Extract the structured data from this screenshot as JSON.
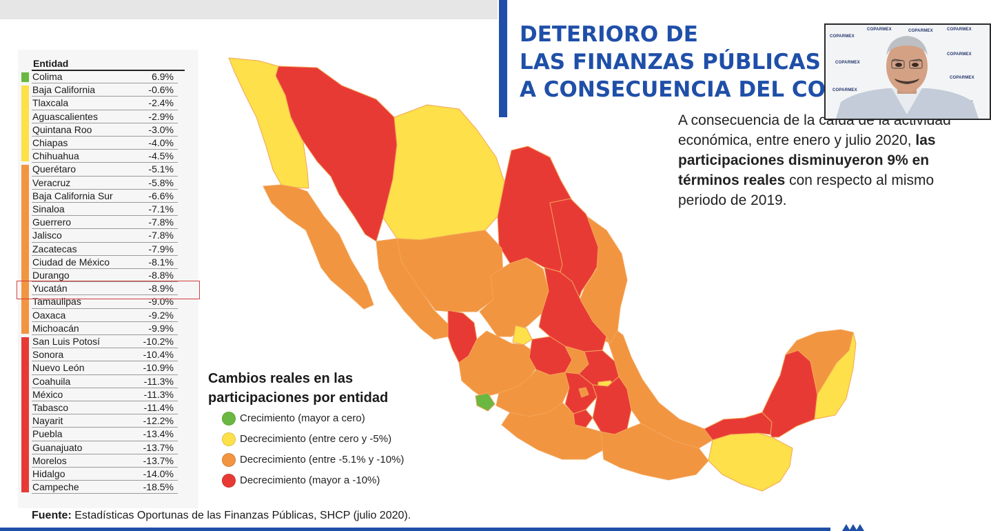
{
  "title": {
    "lines": [
      "DETERIORO DE",
      "LAS FINANZAS PÚBLICAS",
      "A CONSECUENCIA DEL COVID"
    ]
  },
  "paragraph": {
    "part1": "A consecuencia de la caída de la actividad económica, entre enero y julio 2020, ",
    "bold": "las participaciones disminuyeron 9% en términos reales",
    "part2": " con respecto al mismo periodo de 2019."
  },
  "webcam": {
    "logo_text": "COPARMEX"
  },
  "table": {
    "header": "Entidad",
    "rows": [
      {
        "name": "Colima",
        "value": "6.9%"
      },
      {
        "name": "Baja California",
        "value": "-0.6%"
      },
      {
        "name": "Tlaxcala",
        "value": "-2.4%"
      },
      {
        "name": "Aguascalientes",
        "value": "-2.9%"
      },
      {
        "name": "Quintana Roo",
        "value": "-3.0%"
      },
      {
        "name": "Chiapas",
        "value": "-4.0%"
      },
      {
        "name": "Chihuahua",
        "value": "-4.5%"
      },
      {
        "name": "Querétaro",
        "value": "-5.1%"
      },
      {
        "name": "Veracruz",
        "value": "-5.8%"
      },
      {
        "name": "Baja California Sur",
        "value": "-6.6%"
      },
      {
        "name": "Sinaloa",
        "value": "-7.1%"
      },
      {
        "name": "Guerrero",
        "value": "-7.8%"
      },
      {
        "name": "Jalisco",
        "value": "-7.8%"
      },
      {
        "name": "Zacatecas",
        "value": "-7.9%"
      },
      {
        "name": "Ciudad de México",
        "value": "-8.1%"
      },
      {
        "name": "Durango",
        "value": "-8.8%"
      },
      {
        "name": "Yucatán",
        "value": "-8.9%"
      },
      {
        "name": "Tamaulipas",
        "value": "-9.0%"
      },
      {
        "name": "Oaxaca",
        "value": "-9.2%"
      },
      {
        "name": "Michoacán",
        "value": "-9.9%"
      },
      {
        "name": "San Luis Potosí",
        "value": "-10.2%"
      },
      {
        "name": "Sonora",
        "value": "-10.4%"
      },
      {
        "name": "Nuevo León",
        "value": "-10.9%"
      },
      {
        "name": "Coahuila",
        "value": "-11.3%"
      },
      {
        "name": "México",
        "value": "-11.3%"
      },
      {
        "name": "Tabasco",
        "value": "-11.4%"
      },
      {
        "name": "Nayarit",
        "value": "-12.2%"
      },
      {
        "name": "Puebla",
        "value": "-13.4%"
      },
      {
        "name": "Guanajuato",
        "value": "-13.7%"
      },
      {
        "name": "Morelos",
        "value": "-13.7%"
      },
      {
        "name": "Hidalgo",
        "value": "-14.0%"
      },
      {
        "name": "Campeche",
        "value": "-18.5%"
      }
    ],
    "highlighted": "Yucatán"
  },
  "legend": {
    "title_line1": "Cambios reales en las",
    "title_line2": "participaciones por entidad",
    "items": [
      {
        "label": "Crecimiento (mayor a cero)",
        "color": "#6ab841"
      },
      {
        "label": "Decrecimiento (entre cero y -5%)",
        "color": "#fde04a"
      },
      {
        "label": "Decrecimiento (entre -5.1% y -10%)",
        "color": "#f29540"
      },
      {
        "label": "Decrecimiento (mayor a -10%)",
        "color": "#e83a35"
      }
    ]
  },
  "colors": {
    "accent": "#1f4fa8",
    "green": "#6ab841",
    "yellow": "#fde04a",
    "orange": "#f29540",
    "red": "#e83a35",
    "highlight_border": "#d33b3b"
  },
  "footer": {
    "label": "Fuente:",
    "text": " Estadísticas Oportunas de las Finanzas Públicas, SHCP (julio 2020)."
  }
}
